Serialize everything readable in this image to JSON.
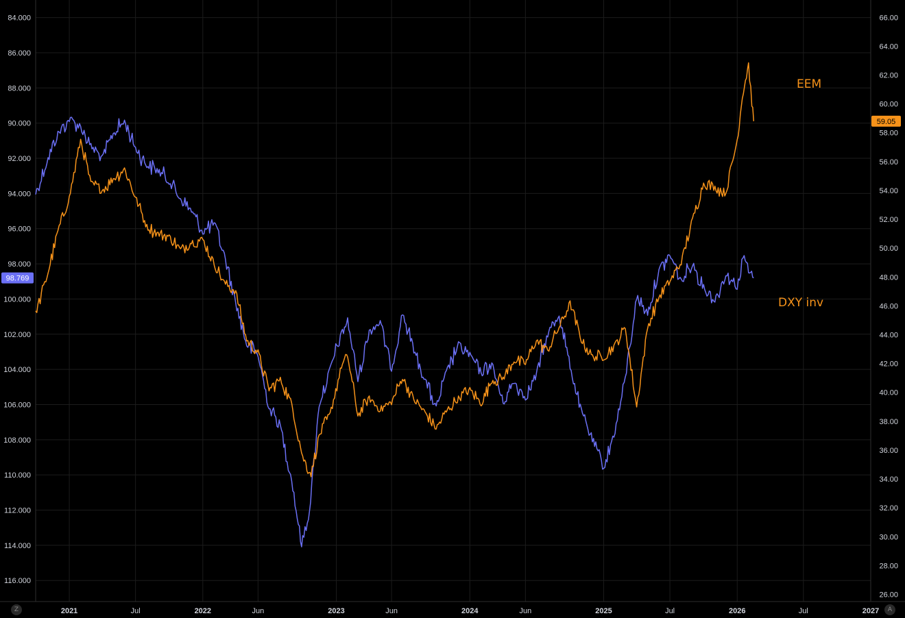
{
  "chart_data": {
    "type": "line",
    "x_range": [
      "2020-10",
      "2027-01"
    ],
    "x_ticks": [
      {
        "label": "2021",
        "date": "2021-01",
        "bold": true
      },
      {
        "label": "Jul",
        "date": "2021-07",
        "bold": false
      },
      {
        "label": "2022",
        "date": "2022-01",
        "bold": true
      },
      {
        "label": "Jun",
        "date": "2022-06",
        "bold": false
      },
      {
        "label": "2023",
        "date": "2023-01",
        "bold": true
      },
      {
        "label": "Jun",
        "date": "2023-06",
        "bold": false
      },
      {
        "label": "2024",
        "date": "2024-01",
        "bold": true
      },
      {
        "label": "Jun",
        "date": "2024-06",
        "bold": false
      },
      {
        "label": "2025",
        "date": "2025-01",
        "bold": true
      },
      {
        "label": "Jul",
        "date": "2025-07",
        "bold": false
      },
      {
        "label": "2026",
        "date": "2026-01",
        "bold": true
      },
      {
        "label": "Jul",
        "date": "2026-07",
        "bold": false
      },
      {
        "label": "2027",
        "date": "2027-01",
        "bold": true
      }
    ],
    "left_axis": {
      "inverted": true,
      "range": [
        83.0,
        117.2
      ],
      "ticks": [
        "84.000",
        "86.000",
        "88.000",
        "90.000",
        "92.000",
        "94.000",
        "96.000",
        "98.000",
        "100.000",
        "102.000",
        "104.000",
        "106.000",
        "108.000",
        "110.000",
        "112.000",
        "114.000",
        "116.000"
      ]
    },
    "right_axis": {
      "range": [
        25.5,
        67.2
      ],
      "ticks": [
        "66.00",
        "64.00",
        "62.00",
        "60.00",
        "58.00",
        "56.00",
        "54.00",
        "52.00",
        "50.00",
        "48.00",
        "46.00",
        "44.00",
        "42.00",
        "40.00",
        "38.00",
        "36.00",
        "34.00",
        "32.00",
        "30.00",
        "28.00",
        "26.00"
      ]
    },
    "grid": true,
    "series": [
      {
        "name": "DXY inv",
        "axis": "left",
        "color": "#6b70f5",
        "last_value": "98.769",
        "points": [
          [
            "2020-10-01",
            94.0
          ],
          [
            "2020-11-01",
            92.2
          ],
          [
            "2020-12-01",
            90.6
          ],
          [
            "2021-01-01",
            89.8
          ],
          [
            "2021-02-01",
            90.2
          ],
          [
            "2021-03-01",
            91.3
          ],
          [
            "2021-04-01",
            92.0
          ],
          [
            "2021-05-01",
            90.6
          ],
          [
            "2021-06-01",
            89.9
          ],
          [
            "2021-07-01",
            91.4
          ],
          [
            "2021-08-01",
            92.4
          ],
          [
            "2021-09-01",
            92.7
          ],
          [
            "2021-10-01",
            93.3
          ],
          [
            "2021-11-01",
            94.3
          ],
          [
            "2021-12-01",
            95.0
          ],
          [
            "2022-01-01",
            96.2
          ],
          [
            "2022-02-01",
            95.7
          ],
          [
            "2022-03-01",
            97.5
          ],
          [
            "2022-04-01",
            100.2
          ],
          [
            "2022-05-01",
            102.6
          ],
          [
            "2022-06-01",
            103.2
          ],
          [
            "2022-07-01",
            106.2
          ],
          [
            "2022-08-01",
            107.2
          ],
          [
            "2022-09-01",
            110.3
          ],
          [
            "2022-09-28",
            114.0
          ],
          [
            "2022-10-20",
            112.0
          ],
          [
            "2022-11-15",
            106.0
          ],
          [
            "2022-12-15",
            104.0
          ],
          [
            "2023-01-15",
            102.0
          ],
          [
            "2023-02-01",
            101.2
          ],
          [
            "2023-03-01",
            104.6
          ],
          [
            "2023-04-01",
            101.8
          ],
          [
            "2023-05-01",
            101.3
          ],
          [
            "2023-06-01",
            104.0
          ],
          [
            "2023-07-01",
            100.8
          ],
          [
            "2023-08-01",
            102.9
          ],
          [
            "2023-09-01",
            104.6
          ],
          [
            "2023-10-01",
            106.2
          ],
          [
            "2023-11-01",
            104.0
          ],
          [
            "2023-12-01",
            102.6
          ],
          [
            "2024-01-01",
            103.2
          ],
          [
            "2024-02-01",
            104.2
          ],
          [
            "2024-03-01",
            103.7
          ],
          [
            "2024-04-01",
            105.9
          ],
          [
            "2024-05-01",
            104.7
          ],
          [
            "2024-06-01",
            105.6
          ],
          [
            "2024-07-01",
            104.3
          ],
          [
            "2024-08-01",
            102.0
          ],
          [
            "2024-09-01",
            100.9
          ],
          [
            "2024-10-01",
            103.8
          ],
          [
            "2024-11-01",
            106.4
          ],
          [
            "2024-12-01",
            108.0
          ],
          [
            "2025-01-01",
            109.6
          ],
          [
            "2025-02-01",
            107.5
          ],
          [
            "2025-03-01",
            104.5
          ],
          [
            "2025-04-01",
            99.9
          ],
          [
            "2025-05-01",
            100.8
          ],
          [
            "2025-06-01",
            98.4
          ],
          [
            "2025-07-01",
            97.5
          ],
          [
            "2025-08-01",
            99.0
          ],
          [
            "2025-09-01",
            98.0
          ],
          [
            "2025-10-01",
            99.3
          ],
          [
            "2025-11-01",
            100.1
          ],
          [
            "2025-12-01",
            98.6
          ],
          [
            "2026-01-01",
            99.3
          ],
          [
            "2026-01-20",
            97.5
          ],
          [
            "2026-02-01",
            98.5
          ],
          [
            "2026-02-15",
            98.8
          ]
        ]
      },
      {
        "name": "EEM",
        "axis": "right",
        "color": "#f7931a",
        "last_value": "59.05",
        "points": [
          [
            "2020-10-01",
            45.5
          ],
          [
            "2020-11-01",
            48.0
          ],
          [
            "2020-12-01",
            51.2
          ],
          [
            "2021-01-01",
            53.5
          ],
          [
            "2021-02-01",
            57.5
          ],
          [
            "2021-03-01",
            54.5
          ],
          [
            "2021-04-01",
            54.0
          ],
          [
            "2021-05-01",
            54.8
          ],
          [
            "2021-06-01",
            55.5
          ],
          [
            "2021-07-01",
            53.5
          ],
          [
            "2021-08-01",
            51.5
          ],
          [
            "2021-09-01",
            51.0
          ],
          [
            "2021-10-01",
            50.8
          ],
          [
            "2021-11-01",
            49.9
          ],
          [
            "2021-12-01",
            50.4
          ],
          [
            "2022-01-01",
            50.6
          ],
          [
            "2022-02-01",
            48.9
          ],
          [
            "2022-03-01",
            47.6
          ],
          [
            "2022-04-01",
            47.0
          ],
          [
            "2022-05-01",
            43.6
          ],
          [
            "2022-06-01",
            42.8
          ],
          [
            "2022-07-01",
            40.2
          ],
          [
            "2022-08-01",
            40.9
          ],
          [
            "2022-09-01",
            39.2
          ],
          [
            "2022-10-01",
            35.5
          ],
          [
            "2022-10-24",
            34.3
          ],
          [
            "2022-11-15",
            37.0
          ],
          [
            "2022-12-15",
            38.5
          ],
          [
            "2023-01-15",
            41.8
          ],
          [
            "2023-02-01",
            42.5
          ],
          [
            "2023-03-01",
            38.4
          ],
          [
            "2023-04-01",
            39.6
          ],
          [
            "2023-05-01",
            38.8
          ],
          [
            "2023-06-01",
            39.3
          ],
          [
            "2023-07-01",
            41.0
          ],
          [
            "2023-08-01",
            39.5
          ],
          [
            "2023-09-01",
            38.6
          ],
          [
            "2023-10-01",
            37.5
          ],
          [
            "2023-11-01",
            38.8
          ],
          [
            "2023-12-01",
            39.6
          ],
          [
            "2024-01-01",
            40.2
          ],
          [
            "2024-02-01",
            39.2
          ],
          [
            "2024-03-01",
            40.8
          ],
          [
            "2024-04-01",
            41.0
          ],
          [
            "2024-05-01",
            42.2
          ],
          [
            "2024-06-01",
            42.0
          ],
          [
            "2024-07-01",
            43.6
          ],
          [
            "2024-08-01",
            42.9
          ],
          [
            "2024-09-01",
            44.5
          ],
          [
            "2024-10-01",
            46.2
          ],
          [
            "2024-11-01",
            43.6
          ],
          [
            "2024-12-01",
            42.5
          ],
          [
            "2025-01-01",
            42.4
          ],
          [
            "2025-02-01",
            43.3
          ],
          [
            "2025-03-01",
            44.5
          ],
          [
            "2025-04-01",
            39.0
          ],
          [
            "2025-05-01",
            44.5
          ],
          [
            "2025-06-01",
            46.6
          ],
          [
            "2025-07-01",
            47.7
          ],
          [
            "2025-08-01",
            49.0
          ],
          [
            "2025-09-01",
            52.0
          ],
          [
            "2025-10-01",
            54.5
          ],
          [
            "2025-11-01",
            54.2
          ],
          [
            "2025-12-01",
            53.8
          ],
          [
            "2026-01-01",
            57.5
          ],
          [
            "2026-01-15",
            60.5
          ],
          [
            "2026-02-01",
            62.8
          ],
          [
            "2026-02-10",
            60.0
          ],
          [
            "2026-02-15",
            58.8
          ]
        ]
      }
    ],
    "annotations": [
      {
        "text": "EEM",
        "color": "#f7931a"
      },
      {
        "text": "DXY inv",
        "color": "#f7931a"
      }
    ]
  },
  "ui": {
    "corner_left": "Z",
    "corner_right": "A"
  }
}
